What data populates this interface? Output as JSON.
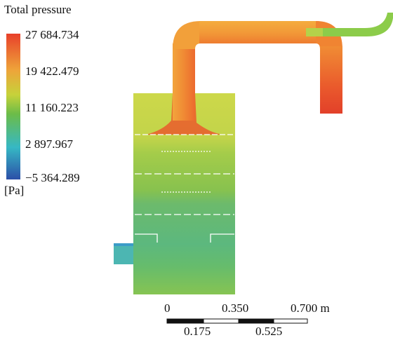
{
  "legend": {
    "title": "Total pressure",
    "unit": "[Pa]",
    "ticks": [
      "27 684.734",
      "19 422.479",
      "11 160.223",
      "2 897.967",
      "−5 364.289"
    ],
    "colors": [
      "#e8402a",
      "#eea43a",
      "#c6d23a",
      "#6cbc48",
      "#36b8c4",
      "#2c4fa8"
    ]
  },
  "scale_bar": {
    "top_labels": [
      "0",
      "0.350",
      "0.700 m"
    ],
    "bottom_labels": [
      "0.175",
      "0.525"
    ]
  },
  "field_colors": {
    "duct_hot": "#e8502a",
    "duct_warm": "#f08a34",
    "duct_orange": "#f4a63c",
    "outlet_green": "#8ccc4a",
    "chamber_top": "#c8d64a",
    "chamber_upper": "#b6d24a",
    "chamber_mid": "#86c250",
    "chamber_low": "#5cb87a",
    "inlet": "#4ab4b4"
  }
}
